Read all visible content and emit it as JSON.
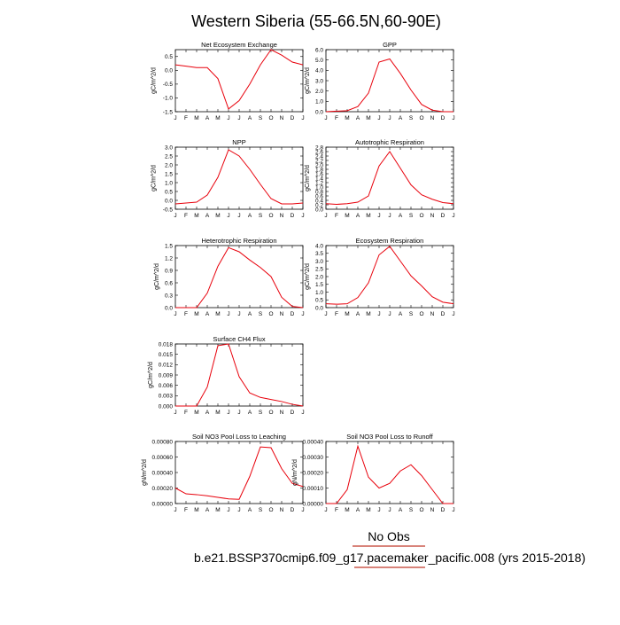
{
  "page": {
    "title": "Western Siberia (55-66.5N,60-90E)",
    "legend_label": "No Obs",
    "case_label": "b.e21.BSSP370cmip6.f09_g17.pacemaker_pacific.008 (yrs 2015-2018)",
    "line_color": "#e8000b",
    "underline_color": "#c0392b"
  },
  "chart_data": [
    {
      "type": "line",
      "title": "Net Ecosystem Exchange",
      "ylabel": "gC/m^2/d",
      "x": [
        "J",
        "F",
        "M",
        "A",
        "M",
        "J",
        "J",
        "A",
        "S",
        "O",
        "N",
        "D",
        "J"
      ],
      "ylim": [
        -1.5,
        0.75
      ],
      "yticks": [
        "0.5",
        "0.0",
        "-0.5",
        "-1.0",
        "-1.5"
      ],
      "ytick_values": [
        0.5,
        0.0,
        -0.5,
        -1.0,
        -1.5
      ],
      "values": [
        0.2,
        0.15,
        0.1,
        0.1,
        -0.3,
        -1.4,
        -1.1,
        -0.5,
        0.2,
        0.75,
        0.55,
        0.3,
        0.2
      ]
    },
    {
      "type": "line",
      "title": "GPP",
      "ylabel": "gC/m^2/d",
      "x": [
        "J",
        "F",
        "M",
        "A",
        "M",
        "J",
        "J",
        "A",
        "S",
        "O",
        "N",
        "D",
        "J"
      ],
      "ylim": [
        0,
        6.0
      ],
      "yticks": [
        "6.0",
        "5.0",
        "4.0",
        "3.0",
        "2.0",
        "1.0",
        "0.0"
      ],
      "ytick_values": [
        6.0,
        5.0,
        4.0,
        3.0,
        2.0,
        1.0,
        0.0
      ],
      "values": [
        0.0,
        0.05,
        0.1,
        0.5,
        1.8,
        4.8,
        5.1,
        3.7,
        2.1,
        0.7,
        0.15,
        0.0,
        0.0
      ]
    },
    {
      "type": "line",
      "title": "NPP",
      "ylabel": "gC/m^2/d",
      "x": [
        "J",
        "F",
        "M",
        "A",
        "M",
        "J",
        "J",
        "A",
        "S",
        "O",
        "N",
        "D",
        "J"
      ],
      "ylim": [
        -0.5,
        3.0
      ],
      "yticks": [
        "3.0",
        "2.5",
        "2.0",
        "1.5",
        "1.0",
        "0.5",
        "0.0",
        "-0.5"
      ],
      "ytick_values": [
        3.0,
        2.5,
        2.0,
        1.5,
        1.0,
        0.5,
        0.0,
        -0.5
      ],
      "values": [
        -0.2,
        -0.15,
        -0.1,
        0.3,
        1.3,
        2.85,
        2.5,
        1.75,
        0.9,
        0.1,
        -0.2,
        -0.2,
        -0.15
      ]
    },
    {
      "type": "line",
      "title": "Autotrophic Respiration",
      "ylabel": "gC/m^2/d",
      "x": [
        "J",
        "F",
        "M",
        "A",
        "M",
        "J",
        "J",
        "A",
        "S",
        "O",
        "N",
        "D",
        "J"
      ],
      "ylim": [
        0,
        2.8
      ],
      "yticks": [
        "2.8",
        "2.6",
        "2.4",
        "2.2",
        "2.0",
        "1.8",
        "1.6",
        "1.4",
        "1.2",
        "1.0",
        "0.8",
        "0.6",
        "0.4",
        "0.2",
        "0.0"
      ],
      "ytick_values": [
        2.8,
        2.6,
        2.4,
        2.2,
        2.0,
        1.8,
        1.6,
        1.4,
        1.2,
        1.0,
        0.8,
        0.6,
        0.4,
        0.2,
        0.0
      ],
      "values": [
        0.25,
        0.22,
        0.25,
        0.32,
        0.6,
        1.95,
        2.6,
        1.85,
        1.1,
        0.65,
        0.45,
        0.3,
        0.25
      ]
    },
    {
      "type": "line",
      "title": "Heterotrophic Respiration",
      "ylabel": "gC/m^2/d",
      "x": [
        "J",
        "F",
        "M",
        "A",
        "M",
        "J",
        "J",
        "A",
        "S",
        "O",
        "N",
        "D",
        "J"
      ],
      "ylim": [
        0,
        1.5
      ],
      "yticks": [
        "1.5",
        "1.2",
        "0.9",
        "0.6",
        "0.3",
        "0.0"
      ],
      "ytick_values": [
        1.5,
        1.2,
        0.9,
        0.6,
        0.3,
        0.0
      ],
      "values": [
        0.0,
        0.0,
        0.0,
        0.35,
        1.0,
        1.45,
        1.35,
        1.15,
        0.97,
        0.75,
        0.25,
        0.03,
        0.0
      ]
    },
    {
      "type": "line",
      "title": "Ecosystem Respiration",
      "ylabel": "gC/m^2/d",
      "x": [
        "J",
        "F",
        "M",
        "A",
        "M",
        "J",
        "J",
        "A",
        "S",
        "O",
        "N",
        "D",
        "J"
      ],
      "ylim": [
        0,
        4.0
      ],
      "yticks": [
        "4.0",
        "3.5",
        "3.0",
        "2.5",
        "2.0",
        "1.5",
        "1.0",
        "0.5",
        "0.0"
      ],
      "ytick_values": [
        4.0,
        3.5,
        3.0,
        2.5,
        2.0,
        1.5,
        1.0,
        0.5,
        0.0
      ],
      "values": [
        0.25,
        0.22,
        0.25,
        0.65,
        1.6,
        3.4,
        3.95,
        3.0,
        2.05,
        1.4,
        0.7,
        0.35,
        0.25
      ]
    },
    {
      "type": "line",
      "title": "Surface CH4 Flux",
      "ylabel": "gC/m^2/d",
      "x": [
        "J",
        "F",
        "M",
        "A",
        "M",
        "J",
        "J",
        "A",
        "S",
        "O",
        "N",
        "D",
        "J"
      ],
      "ylim": [
        0,
        0.018
      ],
      "yticks": [
        "0.018",
        "0.015",
        "0.012",
        "0.009",
        "0.006",
        "0.003",
        "0.000"
      ],
      "ytick_values": [
        0.018,
        0.015,
        0.012,
        0.009,
        0.006,
        0.003,
        0.0
      ],
      "values": [
        0.0,
        0.0,
        0.0,
        0.0055,
        0.0175,
        0.018,
        0.0085,
        0.0038,
        0.0025,
        0.0019,
        0.0013,
        0.0005,
        0.0
      ]
    },
    {
      "type": "line",
      "title": "Soil NO3 Pool Loss to Leaching",
      "ylabel": "gN/m^2/d",
      "x": [
        "J",
        "F",
        "M",
        "A",
        "M",
        "J",
        "J",
        "A",
        "S",
        "O",
        "N",
        "D",
        "J"
      ],
      "ylim": [
        0,
        0.0008
      ],
      "yticks": [
        "0.00080",
        "0.00060",
        "0.00040",
        "0.00020",
        "0.00000"
      ],
      "ytick_values": [
        0.0008,
        0.0006,
        0.0004,
        0.0002,
        0.0
      ],
      "values": [
        0.0002,
        0.000125,
        0.000115,
        0.0001,
        8e-05,
        6e-05,
        5.5e-05,
        0.00035,
        0.00073,
        0.00072,
        0.00045,
        0.00026,
        0.00022
      ]
    },
    {
      "type": "line",
      "title": "Soil NO3 Pool Loss to Runoff",
      "ylabel": "gN/m^2/d",
      "x": [
        "J",
        "F",
        "M",
        "A",
        "M",
        "J",
        "J",
        "A",
        "S",
        "O",
        "N",
        "D",
        "J"
      ],
      "ylim": [
        0,
        0.0004
      ],
      "yticks": [
        "0.00040",
        "0.00030",
        "0.00020",
        "0.00010",
        "0.00000"
      ],
      "ytick_values": [
        0.0004,
        0.0003,
        0.0002,
        0.0001,
        0.0
      ],
      "values": [
        0.0,
        0.0,
        9e-05,
        0.00037,
        0.00017,
        0.0001,
        0.00013,
        0.00021,
        0.00025,
        0.00018,
        9e-05,
        0.0,
        0.0
      ]
    }
  ]
}
